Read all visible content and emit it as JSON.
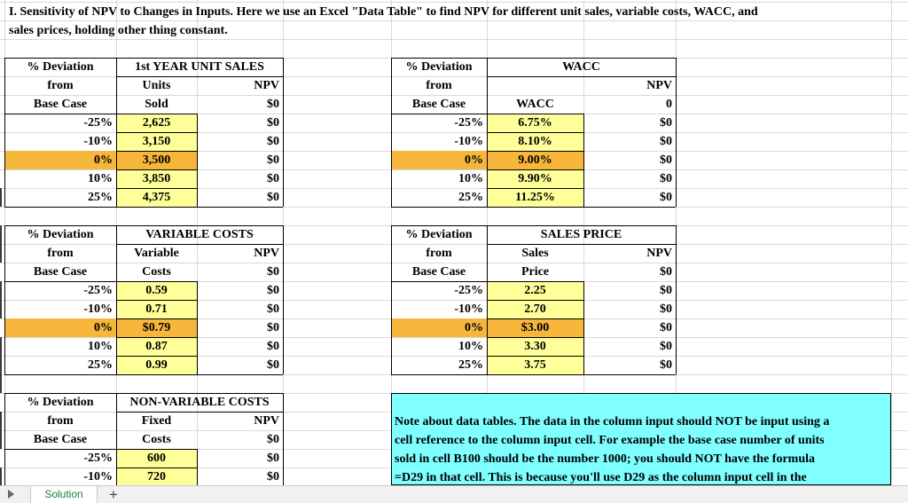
{
  "title_line1": "I.  Sensitivity of NPV to Changes in Inputs.   Here we use an Excel \"Data Table\" to find NPV  for different unit sales, variable costs, WACC, and",
  "title_line2": "sales prices, holding other thing constant.",
  "colors": {
    "yellow": "#ffff99",
    "orange": "#f6b53b",
    "note_bg": "#7fffff",
    "tab_text": "#1a7a3c",
    "grid": "#d9d9d9"
  },
  "units_table": {
    "deviation_header": [
      "% Deviation",
      "from",
      "Base Case"
    ],
    "title": "1st YEAR UNIT SALES",
    "col2_header": [
      "Units",
      "Sold"
    ],
    "npv_header": "NPV",
    "npv_base": "$0",
    "rows": [
      {
        "dev": "-25%",
        "val": "2,625",
        "npv": "$0"
      },
      {
        "dev": "-10%",
        "val": "3,150",
        "npv": "$0"
      },
      {
        "dev": "0%",
        "val": "3,500",
        "npv": "$0"
      },
      {
        "dev": "10%",
        "val": "3,850",
        "npv": "$0"
      },
      {
        "dev": "25%",
        "val": "4,375",
        "npv": "$0"
      }
    ]
  },
  "wacc_table": {
    "deviation_header": [
      "% Deviation",
      "from",
      "Base Case"
    ],
    "title": "WACC",
    "col2_header": [
      "",
      "WACC"
    ],
    "npv_header": "NPV",
    "npv_base": "0",
    "rows": [
      {
        "dev": "-25%",
        "val": "6.75%",
        "npv": "$0"
      },
      {
        "dev": "-10%",
        "val": "8.10%",
        "npv": "$0"
      },
      {
        "dev": "0%",
        "val": "9.00%",
        "npv": "$0"
      },
      {
        "dev": "10%",
        "val": "9.90%",
        "npv": "$0"
      },
      {
        "dev": "25%",
        "val": "11.25%",
        "npv": "$0"
      }
    ]
  },
  "varcost_table": {
    "deviation_header": [
      "% Deviation",
      "from",
      "Base Case"
    ],
    "title": "VARIABLE COSTS",
    "col2_header": [
      "Variable",
      "Costs"
    ],
    "npv_header": "NPV",
    "npv_base": "$0",
    "rows": [
      {
        "dev": "-25%",
        "val": "0.59",
        "npv": "$0"
      },
      {
        "dev": "-10%",
        "val": "0.71",
        "npv": "$0"
      },
      {
        "dev": "0%",
        "val": "$0.79",
        "npv": "$0"
      },
      {
        "dev": "10%",
        "val": "0.87",
        "npv": "$0"
      },
      {
        "dev": "25%",
        "val": "0.99",
        "npv": "$0"
      }
    ]
  },
  "price_table": {
    "deviation_header": [
      "% Deviation",
      "from",
      "Base Case"
    ],
    "title": "SALES PRICE",
    "col2_header": [
      "Sales",
      "Price"
    ],
    "npv_header": "NPV",
    "npv_base": "$0",
    "rows": [
      {
        "dev": "-25%",
        "val": "2.25",
        "npv": "$0"
      },
      {
        "dev": "-10%",
        "val": "2.70",
        "npv": "$0"
      },
      {
        "dev": "0%",
        "val": "$3.00",
        "npv": "$0"
      },
      {
        "dev": "10%",
        "val": "3.30",
        "npv": "$0"
      },
      {
        "dev": "25%",
        "val": "3.75",
        "npv": "$0"
      }
    ]
  },
  "fixed_table": {
    "deviation_header": [
      "% Deviation",
      "from",
      "Base Case"
    ],
    "title": "NON-VARIABLE COSTS",
    "col2_header": [
      "Fixed",
      "Costs"
    ],
    "npv_header": "NPV",
    "npv_base": "$0",
    "rows": [
      {
        "dev": "-25%",
        "val": "600",
        "npv": "$0"
      },
      {
        "dev": "-10%",
        "val": "720",
        "npv": "$0"
      }
    ]
  },
  "note_lines": [
    "Note about data tables.  The data in the column input should NOT be input using a",
    "cell reference to the column input cell.  For example the base case number of units",
    "sold in cell B100 should be the number 1000; you should NOT have the formula",
    "=D29 in that cell.  This is because you'll use D29 as the column input cell in the"
  ],
  "row_edge_marks": [
    {
      "row": 10,
      "color": "#3a3a3a"
    },
    {
      "row": 12,
      "color": "#3a3a3a"
    },
    {
      "row": 13,
      "color": "#3a3a3a"
    },
    {
      "row": 15,
      "color": "#3a3a3a"
    },
    {
      "row": 16,
      "color": "#3a3a3a"
    },
    {
      "row": 18,
      "color": "#3a3a3a"
    },
    {
      "row": 19,
      "color": "#3a3a3a"
    },
    {
      "row": 20,
      "color": "#3a3a3a"
    },
    {
      "row": 22,
      "color": "#3a3a3a"
    },
    {
      "row": 23,
      "color": "#3a3a3a"
    },
    {
      "row": 25,
      "color": "#3a3a3a"
    }
  ],
  "tabs": {
    "active": "Solution",
    "add": "+"
  }
}
